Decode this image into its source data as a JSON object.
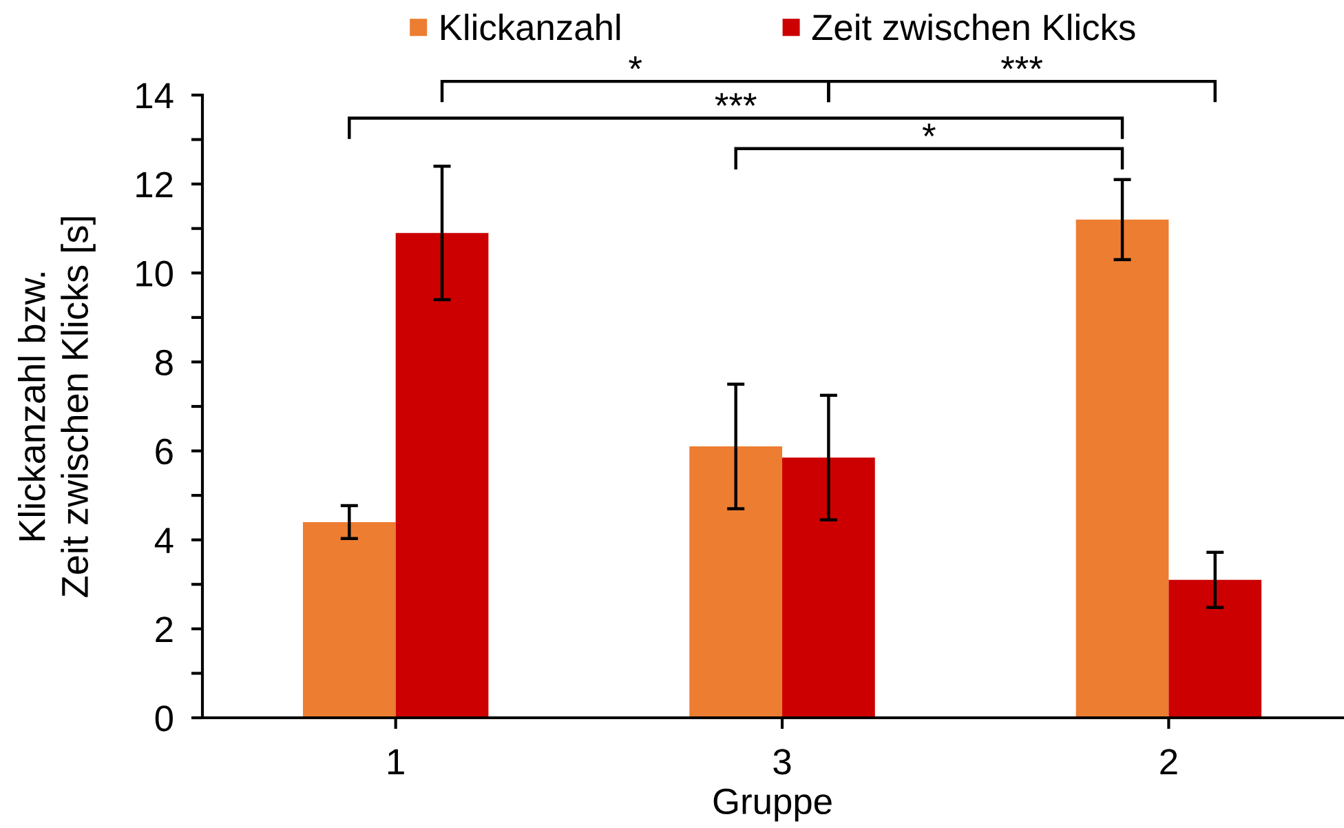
{
  "chart_data": {
    "type": "bar",
    "xlabel": "Gruppe",
    "ylabel": "Klickanzahl bzw.\nZeit zwischen Klicks [s]",
    "categories": [
      "1",
      "3",
      "2"
    ],
    "series": [
      {
        "name": "Klickanzahl",
        "color": "#ed7d31",
        "values": [
          4.4,
          6.1,
          11.2
        ],
        "errors": [
          0.37,
          1.4,
          0.9
        ]
      },
      {
        "name": "Zeit zwischen Klicks",
        "color": "#cc0000",
        "values": [
          10.9,
          5.85,
          3.1
        ],
        "errors": [
          1.5,
          1.4,
          0.62
        ]
      }
    ],
    "ylim": [
      0,
      14
    ],
    "yticks": [
      0,
      2,
      4,
      6,
      8,
      10,
      12,
      14
    ],
    "grid": false,
    "legend": "top",
    "annotations": [
      "*",
      "***",
      "***",
      "*"
    ]
  }
}
